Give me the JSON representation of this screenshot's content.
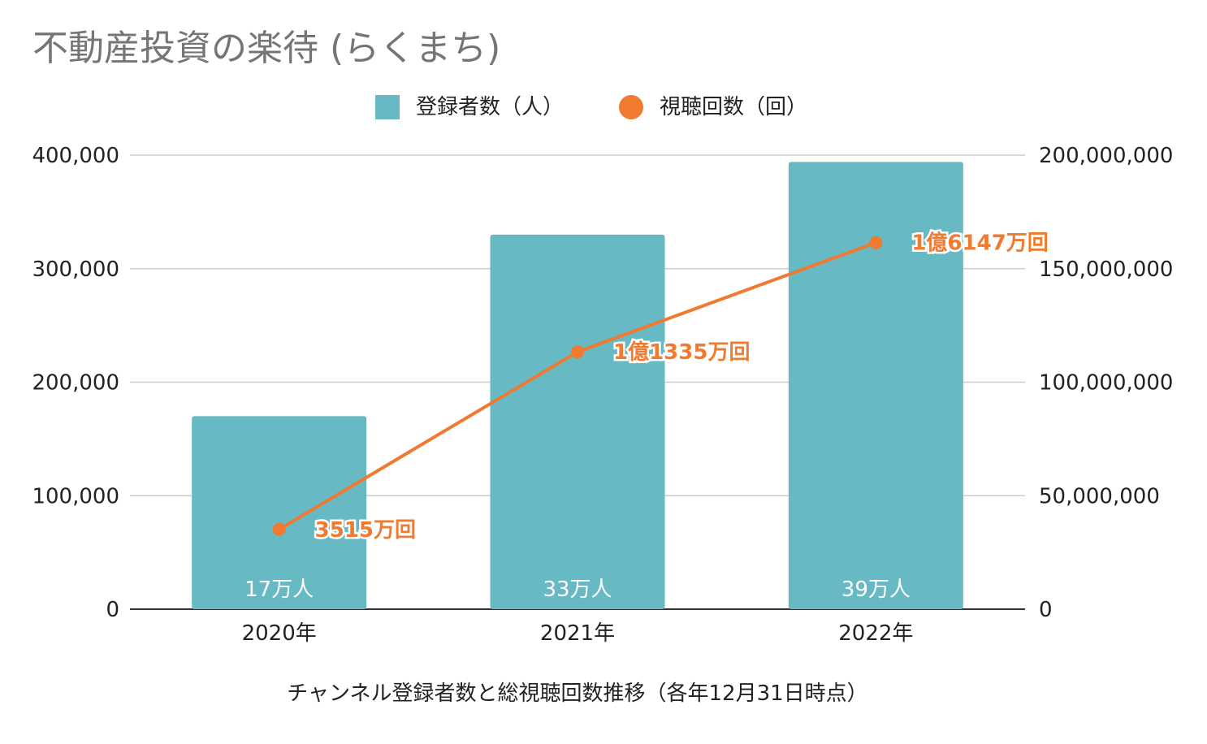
{
  "chart_data": {
    "type": "bar+line",
    "title": "不動産投資の楽待 (らくまち)",
    "xlabel": "チャンネル登録者数と総視聴回数推移（各年12月31日時点）",
    "categories": [
      "2020年",
      "2021年",
      "2022年"
    ],
    "legend_position": "top",
    "grid": true,
    "y_left": {
      "range": [
        0,
        400000
      ],
      "ticks": [
        "0",
        "100,000",
        "200,000",
        "300,000",
        "400,000"
      ],
      "tick_values": [
        0,
        100000,
        200000,
        300000,
        400000
      ]
    },
    "y_right": {
      "range": [
        0,
        200000000
      ],
      "ticks": [
        "0",
        "50,000,000",
        "100,000,000",
        "150,000,000",
        "200,000,000"
      ],
      "tick_values": [
        0,
        50000000,
        100000000,
        150000000,
        200000000
      ]
    },
    "series": [
      {
        "name": "登録者数（人）",
        "type": "bar",
        "axis": "left",
        "color": "#67b9c4",
        "values": [
          170000,
          330000,
          394000
        ],
        "data_labels": [
          "17万人",
          "33万人",
          "39万人"
        ]
      },
      {
        "name": "視聴回数（回）",
        "type": "line",
        "axis": "right",
        "color": "#ef7a30",
        "values": [
          35150000,
          113350000,
          161470000
        ],
        "data_labels": [
          "3515万回",
          "1億1335万回",
          "1億6147万回"
        ]
      }
    ]
  }
}
